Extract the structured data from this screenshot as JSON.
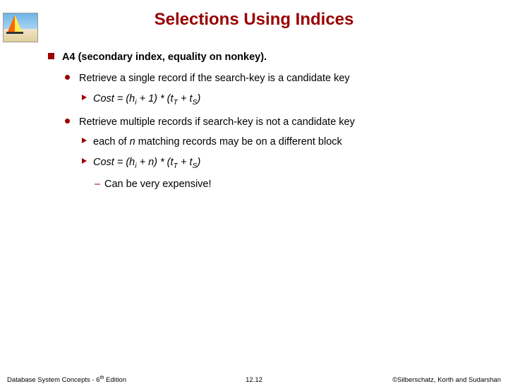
{
  "title": "Selections Using Indices",
  "l1_a": "A4",
  "l1_b": " (secondary index, equality on nonkey).",
  "l2_1": "Retrieve a single record if the search-key is a candidate key",
  "l3_1_pre": "Cost = (h",
  "l3_1_sub1": "i",
  "l3_1_mid1": " + 1) * (t",
  "l3_1_sub2": "T",
  "l3_1_mid2": " + t",
  "l3_1_sub3": "S",
  "l3_1_end": ")",
  "l2_2": "Retrieve multiple records if search-key is not a candidate key",
  "l3_2_a": "each of ",
  "l3_2_n": "n",
  "l3_2_b": " matching records may be on a different block",
  "l3_3_pre": "Cost =  (h",
  "l3_3_sub1": "i",
  "l3_3_mid1": " + n) * (t",
  "l3_3_sub2": "T",
  "l3_3_mid2": " + t",
  "l3_3_sub3": "S",
  "l3_3_end": ")",
  "l4_1": "Can be very expensive!",
  "footer_left_a": "Database System Concepts - 6",
  "footer_left_b": "th",
  "footer_left_c": " Edition",
  "footer_center": "12.12",
  "footer_right": "©Silberschatz, Korth and Sudarshan",
  "colors": {
    "title": "#990000",
    "bullet": "#990000",
    "bg": "#ffffff",
    "text": "#000000"
  }
}
